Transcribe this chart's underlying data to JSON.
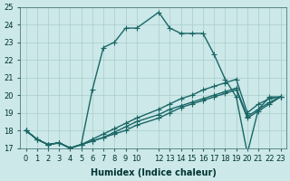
{
  "xlabel": "Humidex (Indice chaleur)",
  "bg_color": "#cce8e8",
  "grid_color": "#aacccc",
  "line_color": "#1a6666",
  "xlim": [
    -0.5,
    23.5
  ],
  "ylim": [
    17,
    25
  ],
  "xticks": [
    0,
    1,
    2,
    3,
    4,
    5,
    6,
    7,
    8,
    9,
    10,
    12,
    13,
    14,
    15,
    16,
    17,
    18,
    19,
    20,
    21,
    22,
    23
  ],
  "yticks": [
    17,
    18,
    19,
    20,
    21,
    22,
    23,
    24,
    25
  ],
  "series": [
    {
      "x": [
        0,
        1,
        2,
        3,
        4,
        5,
        6,
        7,
        8,
        9,
        10,
        12,
        13,
        14,
        15,
        16,
        17,
        18,
        19,
        20,
        21,
        22,
        23
      ],
      "y": [
        18.0,
        17.5,
        17.2,
        17.3,
        17.0,
        17.2,
        20.3,
        22.7,
        23.0,
        23.8,
        23.8,
        24.7,
        23.8,
        23.5,
        23.5,
        23.5,
        22.3,
        20.9,
        19.9,
        16.7,
        19.2,
        19.9,
        19.9
      ]
    },
    {
      "x": [
        0,
        1,
        2,
        3,
        4,
        5,
        6,
        7,
        8,
        9,
        10,
        12,
        13,
        14,
        15,
        16,
        17,
        18,
        19,
        20,
        21,
        22,
        23
      ],
      "y": [
        18.0,
        17.5,
        17.2,
        17.3,
        17.0,
        17.2,
        17.5,
        17.8,
        18.1,
        18.4,
        18.7,
        19.2,
        19.5,
        19.8,
        20.0,
        20.3,
        20.5,
        20.7,
        20.9,
        19.0,
        19.5,
        19.8,
        19.9
      ]
    },
    {
      "x": [
        0,
        1,
        2,
        3,
        4,
        5,
        6,
        7,
        8,
        9,
        10,
        12,
        13,
        14,
        15,
        16,
        17,
        18,
        19,
        20,
        21,
        22,
        23
      ],
      "y": [
        18.0,
        17.5,
        17.2,
        17.3,
        17.0,
        17.2,
        17.4,
        17.6,
        17.9,
        18.2,
        18.5,
        18.9,
        19.2,
        19.4,
        19.6,
        19.8,
        20.0,
        20.2,
        20.4,
        18.8,
        19.2,
        19.6,
        19.9
      ]
    },
    {
      "x": [
        0,
        1,
        2,
        3,
        4,
        5,
        6,
        7,
        8,
        9,
        10,
        12,
        13,
        14,
        15,
        16,
        17,
        18,
        19,
        20,
        21,
        22,
        23
      ],
      "y": [
        18.0,
        17.5,
        17.2,
        17.3,
        17.0,
        17.2,
        17.4,
        17.6,
        17.8,
        18.0,
        18.3,
        18.7,
        19.0,
        19.3,
        19.5,
        19.7,
        19.9,
        20.1,
        20.3,
        18.7,
        19.1,
        19.5,
        19.9
      ]
    }
  ],
  "marker": "+",
  "markersize": 4,
  "linewidth": 1.0,
  "font_size": 7
}
